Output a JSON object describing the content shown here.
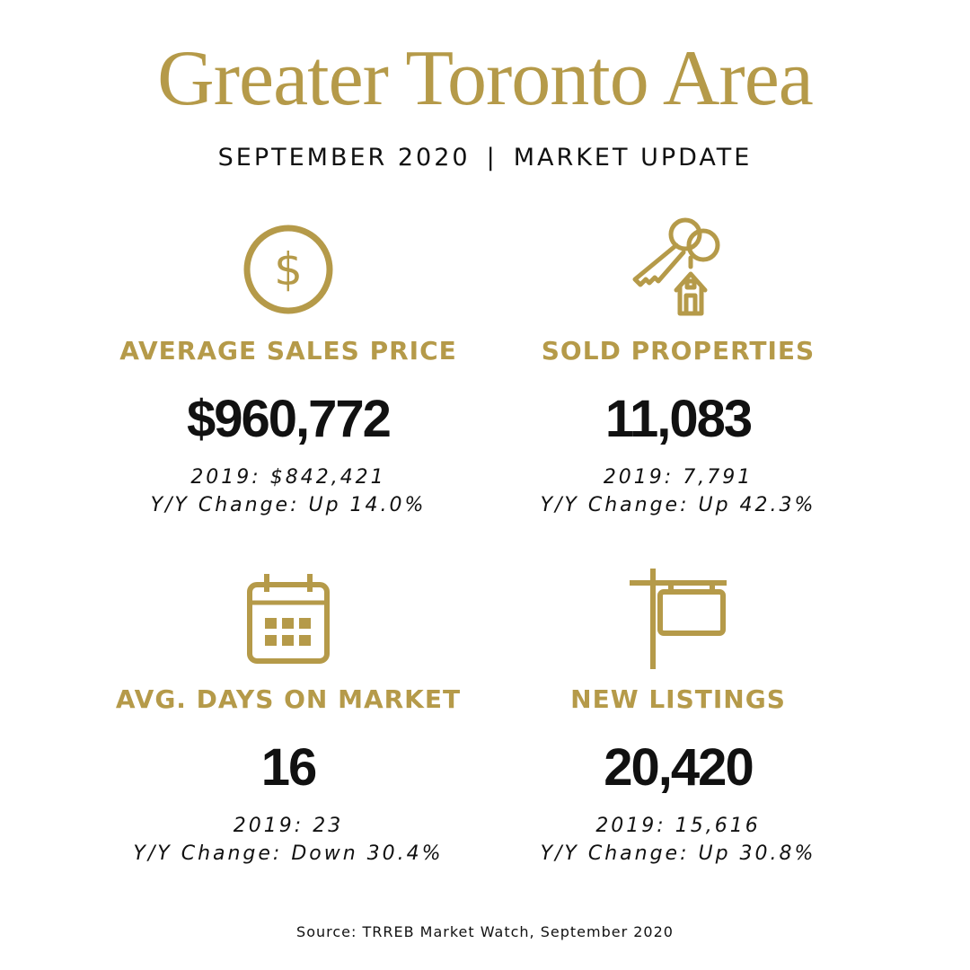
{
  "header": {
    "title": "Greater Toronto Area",
    "subtitle_left": "SEPTEMBER 2020",
    "subtitle_separator": "|",
    "subtitle_right": "MARKET UPDATE"
  },
  "stats": [
    {
      "icon": "dollar-icon",
      "label": "AVERAGE SALES PRICE",
      "value": "$960,772",
      "prior": "2019: $842,421",
      "change": "Y/Y Change: Up 14.0%"
    },
    {
      "icon": "key-house-icon",
      "label": "SOLD PROPERTIES",
      "value": "11,083",
      "prior": "2019: 7,791",
      "change": "Y/Y Change: Up 42.3%"
    },
    {
      "icon": "calendar-icon",
      "label": "AVG. DAYS ON MARKET",
      "value": "16",
      "prior": "2019: 23",
      "change": "Y/Y Change: Down 30.4%"
    },
    {
      "icon": "listing-sign-icon",
      "label": "NEW LISTINGS",
      "value": "20,420",
      "prior": "2019: 15,616",
      "change": "Y/Y Change: Up 30.8%"
    }
  ],
  "footer": {
    "source": "Source: TRREB Market Watch, September 2020"
  },
  "colors": {
    "accent": "#b59a49",
    "text": "#111111",
    "background": "#ffffff"
  }
}
